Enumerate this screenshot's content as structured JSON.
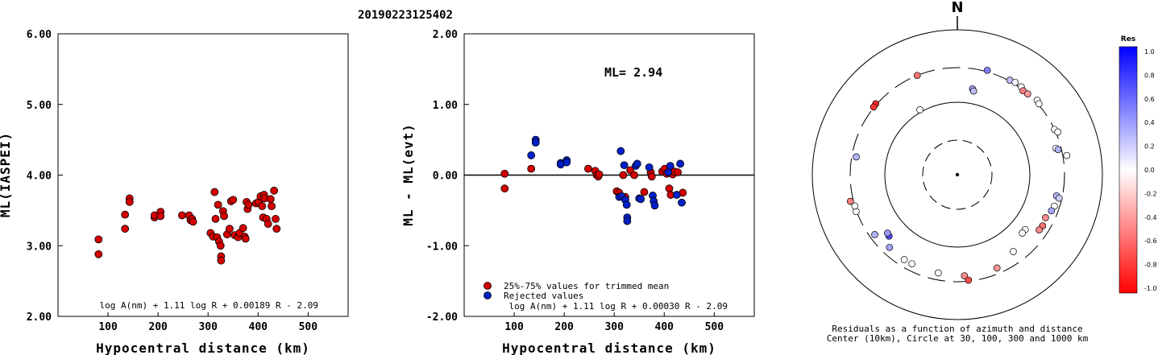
{
  "header": {
    "event_id": "20190223125402"
  },
  "chart_data": [
    {
      "type": "scatter",
      "xlabel": "Hypocentral distance (km)",
      "ylabel": "ML(IASPEI)",
      "xlim": [
        0,
        580
      ],
      "ylim": [
        2.0,
        6.0
      ],
      "xticks": [
        "100",
        "200",
        "300",
        "400",
        "500"
      ],
      "yticks": [
        "2.00",
        "3.00",
        "4.00",
        "5.00",
        "6.00"
      ],
      "formula": "log A(nm) + 1.11 log R + 0.00189 R - 2.09",
      "series": [
        {
          "color": "#d40000",
          "points": [
            [
              81,
              3.09
            ],
            [
              81,
              2.88
            ],
            [
              134,
              3.44
            ],
            [
              134,
              3.24
            ],
            [
              143,
              3.67
            ],
            [
              143,
              3.62
            ],
            [
              193,
              3.4
            ],
            [
              193,
              3.43
            ],
            [
              205,
              3.48
            ],
            [
              205,
              3.42
            ],
            [
              248,
              3.43
            ],
            [
              262,
              3.43
            ],
            [
              265,
              3.36
            ],
            [
              268,
              3.38
            ],
            [
              270,
              3.34
            ],
            [
              305,
              3.18
            ],
            [
              310,
              3.13
            ],
            [
              313,
              3.76
            ],
            [
              315,
              3.38
            ],
            [
              318,
              3.12
            ],
            [
              320,
              3.58
            ],
            [
              322,
              3.06
            ],
            [
              325,
              3.0
            ],
            [
              326,
              2.85
            ],
            [
              326,
              2.79
            ],
            [
              330,
              3.49
            ],
            [
              332,
              3.42
            ],
            [
              338,
              3.16
            ],
            [
              343,
              3.24
            ],
            [
              346,
              3.63
            ],
            [
              350,
              3.65
            ],
            [
              353,
              3.15
            ],
            [
              360,
              3.12
            ],
            [
              363,
              3.18
            ],
            [
              370,
              3.25
            ],
            [
              373,
              3.13
            ],
            [
              375,
              3.1
            ],
            [
              377,
              3.62
            ],
            [
              379,
              3.52
            ],
            [
              381,
              3.58
            ],
            [
              396,
              3.6
            ],
            [
              401,
              3.62
            ],
            [
              405,
              3.7
            ],
            [
              408,
              3.56
            ],
            [
              410,
              3.4
            ],
            [
              412,
              3.72
            ],
            [
              413,
              3.67
            ],
            [
              417,
              3.38
            ],
            [
              420,
              3.31
            ],
            [
              425,
              3.66
            ],
            [
              427,
              3.56
            ],
            [
              432,
              3.78
            ],
            [
              435,
              3.38
            ],
            [
              437,
              3.24
            ]
          ]
        }
      ]
    },
    {
      "type": "scatter",
      "xlabel": "Hypocentral distance (km)",
      "ylabel": "ML - ML(evt)",
      "xlim": [
        0,
        580
      ],
      "ylim": [
        -2.0,
        2.0
      ],
      "xticks": [
        "100",
        "200",
        "300",
        "400",
        "500"
      ],
      "yticks": [
        "-2.00",
        "-1.00",
        "0.00",
        "1.00",
        "2.00"
      ],
      "annotation": "ML= 2.94",
      "formula": "log A(nm) + 1.11 log R + 0.00030 R - 2.09",
      "legend": {
        "position": "bottom-left",
        "items": [
          {
            "label": "25%-75% values for trimmed mean",
            "color": "#d40000"
          },
          {
            "label": "Rejected values",
            "color": "#0020c8"
          }
        ]
      },
      "series": [
        {
          "name": "25%-75% values for trimmed mean",
          "color": "#d40000",
          "points": [
            [
              81,
              0.02
            ],
            [
              81,
              -0.19
            ],
            [
              134,
              0.09
            ],
            [
              248,
              0.09
            ],
            [
              262,
              0.06
            ],
            [
              265,
              0.0
            ],
            [
              268,
              -0.02
            ],
            [
              270,
              0.01
            ],
            [
              305,
              -0.23
            ],
            [
              310,
              -0.25
            ],
            [
              318,
              0.0
            ],
            [
              322,
              -0.31
            ],
            [
              332,
              0.07
            ],
            [
              340,
              0.0
            ],
            [
              360,
              -0.24
            ],
            [
              373,
              0.04
            ],
            [
              375,
              -0.02
            ],
            [
              396,
              0.05
            ],
            [
              401,
              0.09
            ],
            [
              405,
              0.02
            ],
            [
              410,
              -0.19
            ],
            [
              413,
              -0.28
            ],
            [
              417,
              0.01
            ],
            [
              420,
              0.05
            ],
            [
              427,
              0.04
            ],
            [
              437,
              -0.25
            ]
          ]
        },
        {
          "name": "Rejected values",
          "color": "#0020c8",
          "points": [
            [
              134,
              0.28
            ],
            [
              143,
              0.5
            ],
            [
              143,
              0.46
            ],
            [
              193,
              0.17
            ],
            [
              193,
              0.15
            ],
            [
              205,
              0.21
            ],
            [
              205,
              0.18
            ],
            [
              310,
              -0.31
            ],
            [
              313,
              0.34
            ],
            [
              315,
              -0.3
            ],
            [
              320,
              0.14
            ],
            [
              322,
              -0.35
            ],
            [
              325,
              -0.42
            ],
            [
              326,
              -0.6
            ],
            [
              326,
              -0.65
            ],
            [
              343,
              0.13
            ],
            [
              346,
              0.16
            ],
            [
              350,
              -0.33
            ],
            [
              353,
              -0.34
            ],
            [
              370,
              0.11
            ],
            [
              377,
              -0.29
            ],
            [
              379,
              -0.37
            ],
            [
              381,
              -0.43
            ],
            [
              408,
              0.04
            ],
            [
              412,
              0.13
            ],
            [
              425,
              -0.28
            ],
            [
              432,
              0.16
            ],
            [
              435,
              -0.39
            ]
          ]
        }
      ]
    },
    {
      "type": "polar-scatter",
      "north_label": "N",
      "caption": [
        "Residuals as a function of azimuth and distance",
        "Center (10km), Circle at 30, 100, 300 and 1000 km"
      ],
      "colorbar": {
        "title": "Res",
        "ticks": [
          "1.0",
          "0.8",
          "0.6",
          "0.4",
          "0.2",
          "0.0",
          "-0.2",
          "-0.4",
          "-0.6",
          "-0.8",
          "-1.0"
        ]
      },
      "circles_km": [
        30,
        100,
        300,
        1000
      ],
      "stations": [
        {
          "az": 338,
          "dist": 300,
          "res": -0.55
        },
        {
          "az": 311,
          "dist": 310,
          "res": -0.85
        },
        {
          "az": 309,
          "dist": 305,
          "res": -0.8
        },
        {
          "az": 16,
          "dist": 315,
          "res": 0.5
        },
        {
          "az": 10,
          "dist": 160,
          "res": 0.35
        },
        {
          "az": 11,
          "dist": 150,
          "res": 0.25
        },
        {
          "az": 330,
          "dist": 108,
          "res": 0.0
        },
        {
          "az": 29,
          "dist": 310,
          "res": 0.25
        },
        {
          "az": 32,
          "dist": 318,
          "res": 0.05
        },
        {
          "az": 36,
          "dist": 315,
          "res": 0.0
        },
        {
          "az": 38,
          "dist": 295,
          "res": -0.5
        },
        {
          "az": 41,
          "dist": 300,
          "res": -0.4
        },
        {
          "az": 47,
          "dist": 320,
          "res": 0.0
        },
        {
          "az": 49,
          "dist": 310,
          "res": 0.0
        },
        {
          "az": 65,
          "dist": 300,
          "res": 0.0
        },
        {
          "az": 67,
          "dist": 320,
          "res": 0.0
        },
        {
          "az": 75,
          "dist": 255,
          "res": 0.0
        },
        {
          "az": 76,
          "dist": 270,
          "res": 0.3
        },
        {
          "az": 80,
          "dist": 340,
          "res": 0.0
        },
        {
          "az": 102,
          "dist": 250,
          "res": 0.3
        },
        {
          "az": 103,
          "dist": 275,
          "res": 0.2
        },
        {
          "az": 108,
          "dist": 255,
          "res": 0.0
        },
        {
          "az": 111,
          "dist": 245,
          "res": 0.35
        },
        {
          "az": 116,
          "dist": 225,
          "res": -0.45
        },
        {
          "az": 121,
          "dist": 235,
          "res": -0.55
        },
        {
          "az": 124,
          "dist": 230,
          "res": -0.45
        },
        {
          "az": 129,
          "dist": 160,
          "res": 0.0
        },
        {
          "az": 132,
          "dist": 160,
          "res": 0.0
        },
        {
          "az": 144,
          "dist": 205,
          "res": 0.0
        },
        {
          "az": 157,
          "dist": 250,
          "res": -0.4
        },
        {
          "az": 176,
          "dist": 250,
          "res": -0.45
        },
        {
          "az": 174,
          "dist": 290,
          "res": -0.7
        },
        {
          "az": 191,
          "dist": 240,
          "res": 0.0
        },
        {
          "az": 207,
          "dist": 240,
          "res": 0.0
        },
        {
          "az": 212,
          "dist": 240,
          "res": 0.0
        },
        {
          "az": 223,
          "dist": 235,
          "res": 0.35
        },
        {
          "az": 228,
          "dist": 185,
          "res": 0.7
        },
        {
          "az": 230,
          "dist": 180,
          "res": 0.4
        },
        {
          "az": 234,
          "dist": 255,
          "res": 0.3
        },
        {
          "az": 250,
          "dist": 305,
          "res": 0.0
        },
        {
          "az": 253,
          "dist": 300,
          "res": 0.0
        },
        {
          "az": 256,
          "dist": 330,
          "res": -0.5
        },
        {
          "az": 280,
          "dist": 260,
          "res": 0.3
        }
      ]
    }
  ]
}
